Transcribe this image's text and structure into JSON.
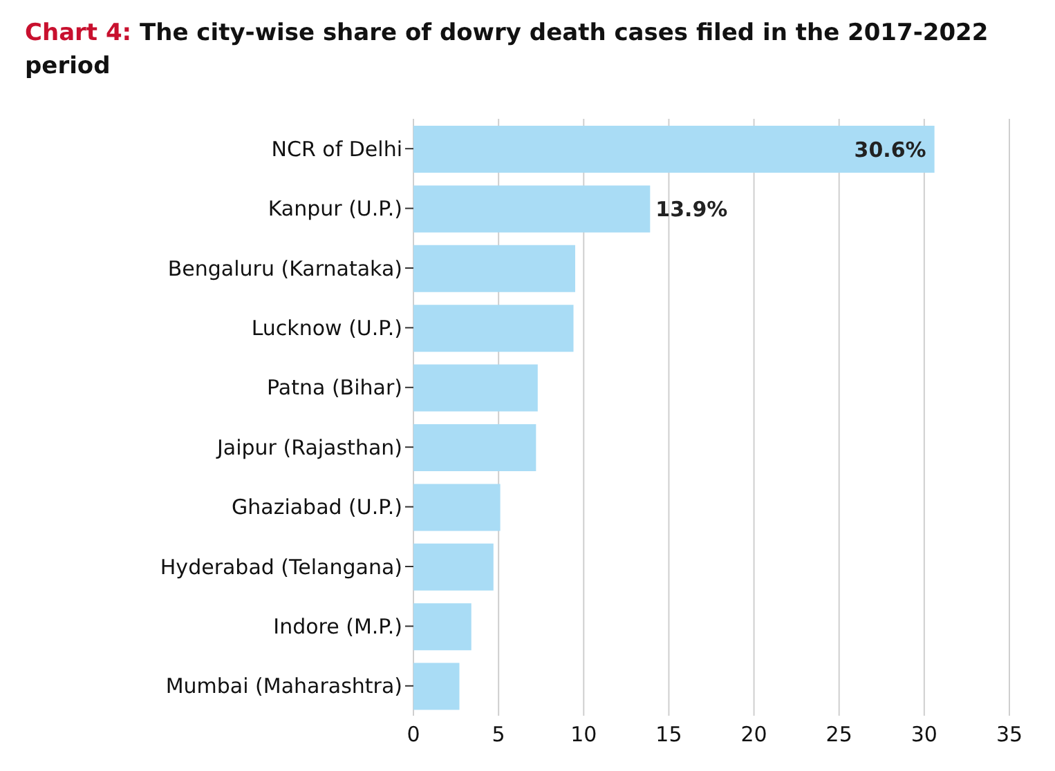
{
  "chart_data": {
    "type": "bar",
    "orientation": "horizontal",
    "title": "Chart 4: The city-wise share of dowry death cases filed in the 2017-2022 period",
    "categories": [
      "NCR of Delhi",
      "Kanpur (U.P.)",
      "Bengaluru (Karnataka)",
      "Lucknow (U.P.)",
      "Patna (Bihar)",
      "Jaipur (Rajasthan)",
      "Ghaziabad (U.P.)",
      "Hyderabad (Telangana)",
      "Indore (M.P.)",
      "Mumbai (Maharashtra)"
    ],
    "values": [
      30.6,
      13.9,
      9.5,
      9.4,
      7.3,
      7.2,
      5.1,
      4.7,
      3.4,
      2.7
    ],
    "value_labels": [
      "30.6%",
      "13.9%",
      null,
      null,
      null,
      null,
      null,
      null,
      null,
      null
    ],
    "color": "#a9dcf5",
    "xlim": [
      0,
      35
    ],
    "xticks": [
      0,
      5,
      10,
      15,
      20,
      25,
      30,
      35
    ],
    "grid": "x"
  }
}
